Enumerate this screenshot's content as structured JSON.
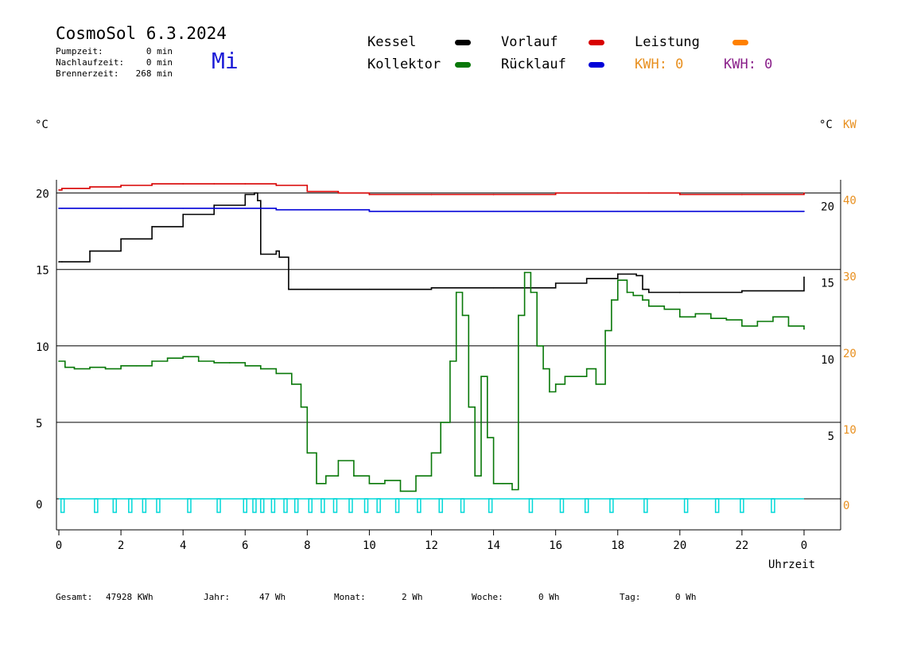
{
  "header": {
    "title": "CosmoSol 6.3.2024",
    "day": "Mi",
    "stats": [
      {
        "label": "Pumpzeit:",
        "value": "0 min"
      },
      {
        "label": "Nachlaufzeit:",
        "value": "0 min"
      },
      {
        "label": "Brennerzeit:",
        "value": "268 min"
      }
    ]
  },
  "legend": {
    "kessel": "Kessel",
    "kollektor": "Kollektor",
    "vorlauf": "Vorlauf",
    "ruecklauf": "Rücklauf",
    "leistung": "Leistung",
    "kwh1": "KWH: 0",
    "kwh2": "KWH: 0"
  },
  "units": {
    "left": "°C",
    "right_c": "°C",
    "right_kw": "KW"
  },
  "footer": {
    "items": [
      {
        "label": "Gesamt:",
        "value": "47928 KWh"
      },
      {
        "label": "Jahr:",
        "value": "47 Wh"
      },
      {
        "label": "Monat:",
        "value": "2 Wh"
      },
      {
        "label": "Woche:",
        "value": "0 Wh"
      },
      {
        "label": "Tag:",
        "value": "0 Wh"
      }
    ]
  },
  "colors": {
    "kessel": "#000000",
    "kollektor": "#087808",
    "vorlauf": "#d80000",
    "ruecklauf": "#0000d8",
    "leistung": "#ff8000",
    "pumpe": "#00d8d8",
    "kwh1": "#e89020",
    "kwh2": "#8a208a",
    "kw_axis": "#e89020"
  },
  "chart_data": {
    "type": "line",
    "xlabel": "Uhrzeit",
    "x_ticks": [
      "0",
      "2",
      "4",
      "6",
      "8",
      "10",
      "12",
      "14",
      "16",
      "18",
      "20",
      "22",
      "0"
    ],
    "xlim": [
      0,
      24
    ],
    "y_left_ticks": [
      "0",
      "5",
      "10",
      "15",
      "20"
    ],
    "y_left_lim": [
      0,
      21
    ],
    "y_right_c_ticks": [
      "5",
      "10",
      "15",
      "20"
    ],
    "y_right_kw_ticks": [
      "0",
      "10",
      "20",
      "30",
      "40"
    ],
    "grid": "horizontal",
    "series": [
      {
        "name": "Kessel",
        "color_key": "kessel",
        "x": [
          0.0,
          0.1,
          1.0,
          2.0,
          3.0,
          4.0,
          5.0,
          6.0,
          6.3,
          6.4,
          6.5,
          7.0,
          7.1,
          7.4,
          8.0,
          10.0,
          12.0,
          14.0,
          15.0,
          16.0,
          17.0,
          18.0,
          18.6,
          18.8,
          19.0,
          20.0,
          22.0,
          24.0
        ],
        "y": [
          15.5,
          15.5,
          16.2,
          17.0,
          17.8,
          18.6,
          19.2,
          19.9,
          20.0,
          19.5,
          16.0,
          16.2,
          15.8,
          13.7,
          13.7,
          13.7,
          13.8,
          13.8,
          13.8,
          14.1,
          14.4,
          14.7,
          14.6,
          13.7,
          13.5,
          13.5,
          13.6,
          14.5
        ]
      },
      {
        "name": "Vorlauf",
        "color_key": "vorlauf",
        "x": [
          0.0,
          0.1,
          1.0,
          2.0,
          3.0,
          4.0,
          5.0,
          6.0,
          7.0,
          8.0,
          9.0,
          10.0,
          12.0,
          14.0,
          16.0,
          18.0,
          19.0,
          20.0,
          22.0,
          24.0
        ],
        "y": [
          20.2,
          20.3,
          20.4,
          20.5,
          20.6,
          20.6,
          20.6,
          20.6,
          20.5,
          20.1,
          20.0,
          19.9,
          19.9,
          19.9,
          20.0,
          20.0,
          20.0,
          19.9,
          19.9,
          20.0
        ]
      },
      {
        "name": "Rücklauf",
        "color_key": "ruecklauf",
        "x": [
          0.0,
          0.1,
          2.0,
          4.0,
          6.0,
          7.0,
          8.0,
          10.0,
          12.0,
          14.0,
          16.0,
          18.0,
          20.0,
          22.0,
          24.0
        ],
        "y": [
          19.0,
          19.0,
          19.0,
          19.0,
          19.0,
          18.9,
          18.9,
          18.8,
          18.8,
          18.8,
          18.8,
          18.8,
          18.8,
          18.8,
          18.8
        ]
      },
      {
        "name": "Kollektor",
        "color_key": "kollektor",
        "x": [
          0.0,
          0.2,
          0.5,
          1.0,
          1.5,
          2.0,
          2.5,
          3.0,
          3.5,
          4.0,
          4.5,
          5.0,
          5.5,
          6.0,
          6.5,
          7.0,
          7.5,
          7.8,
          8.0,
          8.3,
          8.6,
          9.0,
          9.5,
          10.0,
          10.5,
          11.0,
          11.5,
          12.0,
          12.3,
          12.6,
          12.8,
          13.0,
          13.2,
          13.4,
          13.6,
          13.8,
          14.0,
          14.3,
          14.6,
          14.8,
          15.0,
          15.2,
          15.4,
          15.6,
          15.8,
          16.0,
          16.3,
          16.6,
          17.0,
          17.3,
          17.6,
          17.8,
          18.0,
          18.3,
          18.5,
          18.8,
          19.0,
          19.5,
          20.0,
          20.5,
          21.0,
          21.5,
          22.0,
          22.5,
          23.0,
          23.5,
          24.0
        ],
        "y": [
          9.0,
          8.6,
          8.5,
          8.6,
          8.5,
          8.7,
          8.7,
          9.0,
          9.2,
          9.3,
          9.0,
          8.9,
          8.9,
          8.7,
          8.5,
          8.2,
          7.5,
          6.0,
          3.0,
          1.0,
          1.5,
          2.5,
          1.5,
          1.0,
          1.2,
          0.5,
          1.5,
          3.0,
          5.0,
          9.0,
          13.5,
          12.0,
          6.0,
          1.5,
          8.0,
          4.0,
          1.0,
          1.0,
          0.6,
          12.0,
          14.8,
          13.5,
          10.0,
          8.5,
          7.0,
          7.5,
          8.0,
          8.0,
          8.5,
          7.5,
          11.0,
          13.0,
          14.3,
          13.5,
          13.3,
          13.0,
          12.6,
          12.4,
          11.9,
          12.1,
          11.8,
          11.7,
          11.3,
          11.6,
          11.9,
          11.3,
          11.1
        ]
      },
      {
        "name": "Pumpe",
        "color_key": "pumpe",
        "type": "pulses",
        "pulses": [
          0.12,
          1.2,
          1.8,
          2.3,
          2.75,
          3.2,
          4.2,
          5.15,
          6.0,
          6.3,
          6.55,
          6.9,
          7.3,
          7.65,
          8.1,
          8.5,
          8.9,
          9.4,
          9.9,
          10.3,
          10.9,
          11.6,
          12.3,
          13.0,
          13.9,
          15.2,
          16.2,
          17.0,
          17.8,
          18.9,
          20.2,
          21.2,
          22.0,
          23.0
        ]
      }
    ]
  }
}
